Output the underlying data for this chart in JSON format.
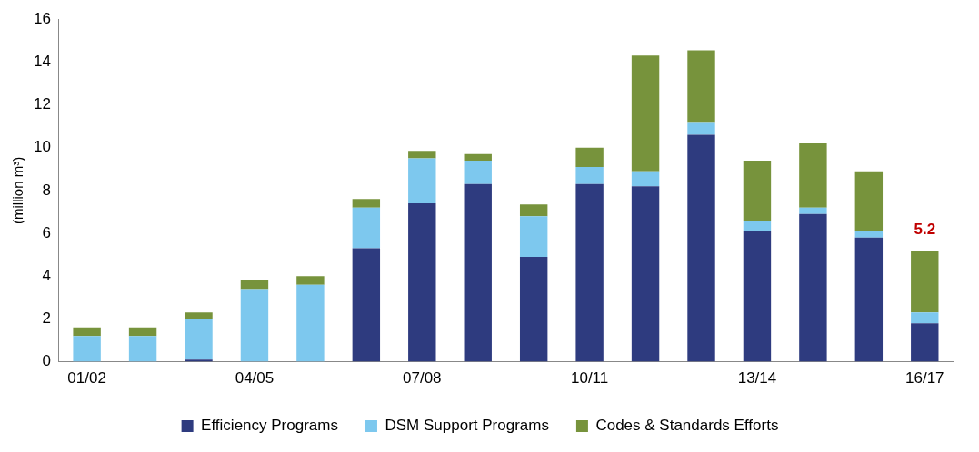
{
  "chart_data": {
    "type": "bar",
    "stacked": true,
    "ylabel": "(million m³)",
    "categories": [
      "01/02",
      null,
      null,
      "04/05",
      null,
      null,
      "07/08",
      null,
      null,
      "10/11",
      null,
      null,
      "13/14",
      null,
      null,
      "16/17"
    ],
    "series": [
      {
        "name": "Efficiency Programs",
        "color": "#2e3b7f",
        "values": [
          0,
          0,
          0.1,
          0,
          0,
          5.3,
          7.4,
          8.3,
          4.9,
          8.3,
          8.2,
          10.6,
          6.1,
          6.9,
          5.8,
          1.8
        ]
      },
      {
        "name": "DSM Support Programs",
        "color": "#7dc8ee",
        "values": [
          1.2,
          1.2,
          1.9,
          3.4,
          3.6,
          1.9,
          2.1,
          1.1,
          1.9,
          0.8,
          0.7,
          0.6,
          0.5,
          0.3,
          0.3,
          0.5
        ]
      },
      {
        "name": "Codes & Standards Efforts",
        "color": "#77933c",
        "values": [
          0.4,
          0.4,
          0.3,
          0.4,
          0.4,
          0.4,
          0.35,
          0.3,
          0.55,
          0.9,
          5.4,
          3.35,
          2.8,
          3.0,
          2.8,
          2.9
        ]
      }
    ],
    "totals": [
      null,
      null,
      null,
      null,
      null,
      null,
      null,
      null,
      null,
      null,
      null,
      null,
      null,
      null,
      null,
      "5.2"
    ],
    "ylim": [
      0,
      16
    ],
    "yticks": [
      0,
      2,
      4,
      6,
      8,
      10,
      12,
      14,
      16
    ],
    "grid": false,
    "legend": "bottom"
  }
}
